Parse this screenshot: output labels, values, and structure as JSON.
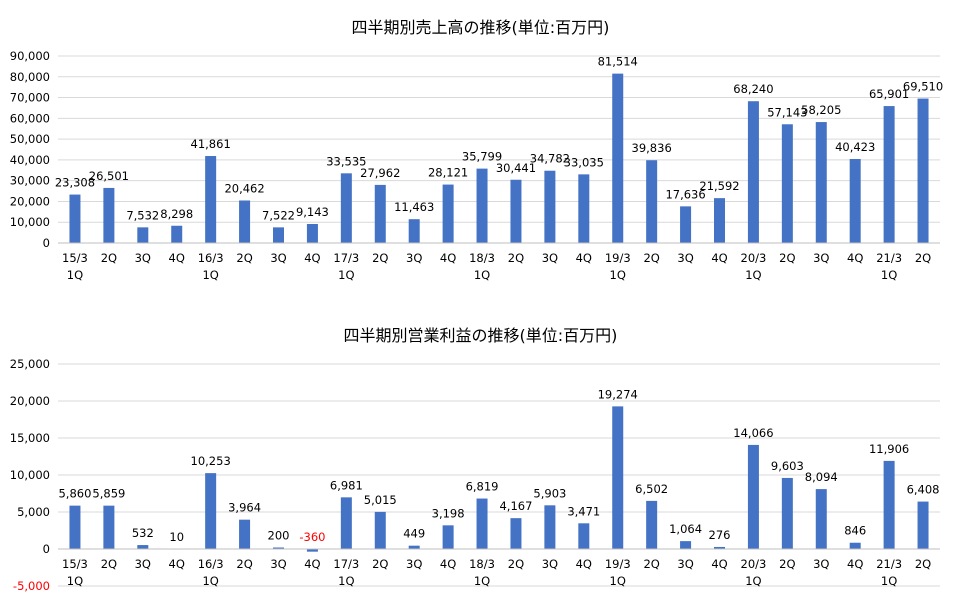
{
  "chart_data": [
    {
      "type": "bar",
      "title": "四半期別売上高の推移(単位:百万円)",
      "categories": [
        "15/3 1Q",
        "2Q",
        "3Q",
        "4Q",
        "16/3 1Q",
        "2Q",
        "3Q",
        "4Q",
        "17/3 1Q",
        "2Q",
        "3Q",
        "4Q",
        "18/3 1Q",
        "2Q",
        "3Q",
        "4Q",
        "19/3 1Q",
        "2Q",
        "3Q",
        "4Q",
        "20/3 1Q",
        "2Q",
        "3Q",
        "4Q",
        "21/3 1Q",
        "2Q"
      ],
      "category_lines": [
        [
          "15/3",
          "1Q"
        ],
        [
          "2Q"
        ],
        [
          "3Q"
        ],
        [
          "4Q"
        ],
        [
          "16/3",
          "1Q"
        ],
        [
          "2Q"
        ],
        [
          "3Q"
        ],
        [
          "4Q"
        ],
        [
          "17/3",
          "1Q"
        ],
        [
          "2Q"
        ],
        [
          "3Q"
        ],
        [
          "4Q"
        ],
        [
          "18/3",
          "1Q"
        ],
        [
          "2Q"
        ],
        [
          "3Q"
        ],
        [
          "4Q"
        ],
        [
          "19/3",
          "1Q"
        ],
        [
          "2Q"
        ],
        [
          "3Q"
        ],
        [
          "4Q"
        ],
        [
          "20/3",
          "1Q"
        ],
        [
          "2Q"
        ],
        [
          "3Q"
        ],
        [
          "4Q"
        ],
        [
          "21/3",
          "1Q"
        ],
        [
          "2Q"
        ]
      ],
      "values": [
        23308,
        26501,
        7532,
        8298,
        41861,
        20462,
        7522,
        9143,
        33535,
        27962,
        11463,
        28121,
        35799,
        30441,
        34782,
        33035,
        81514,
        39836,
        17636,
        21592,
        68240,
        57143,
        58205,
        40423,
        65901,
        69510
      ],
      "labels": [
        "23,308",
        "26,501",
        "7,532",
        "8,298",
        "41,861",
        "20,462",
        "7,522",
        "9,143",
        "33,535",
        "27,962",
        "11,463",
        "28,121",
        "35,799",
        "30,441",
        "34,782",
        "33,035",
        "81,514",
        "39,836",
        "17,636",
        "21,592",
        "68,240",
        "57,143",
        "58,205",
        "40,423",
        "65,901",
        "69,510"
      ],
      "ylim": [
        0,
        90000
      ],
      "yticks": [
        0,
        10000,
        20000,
        30000,
        40000,
        50000,
        60000,
        70000,
        80000,
        90000
      ],
      "ytick_labels": [
        "0",
        "10,000",
        "20,000",
        "30,000",
        "40,000",
        "50,000",
        "60,000",
        "70,000",
        "80,000",
        "90,000"
      ],
      "xlabel": "",
      "ylabel": "",
      "grid": true,
      "legend": "none"
    },
    {
      "type": "bar",
      "title": "四半期別営業利益の推移(単位:百万円)",
      "categories": [
        "15/3 1Q",
        "2Q",
        "3Q",
        "4Q",
        "16/3 1Q",
        "2Q",
        "3Q",
        "4Q",
        "17/3 1Q",
        "2Q",
        "3Q",
        "4Q",
        "18/3 1Q",
        "2Q",
        "3Q",
        "4Q",
        "19/3 1Q",
        "2Q",
        "3Q",
        "4Q",
        "20/3 1Q",
        "2Q",
        "3Q",
        "4Q",
        "21/3 1Q",
        "2Q"
      ],
      "category_lines": [
        [
          "15/3",
          "1Q"
        ],
        [
          "2Q"
        ],
        [
          "3Q"
        ],
        [
          "4Q"
        ],
        [
          "16/3",
          "1Q"
        ],
        [
          "2Q"
        ],
        [
          "3Q"
        ],
        [
          "4Q"
        ],
        [
          "17/3",
          "1Q"
        ],
        [
          "2Q"
        ],
        [
          "3Q"
        ],
        [
          "4Q"
        ],
        [
          "18/3",
          "1Q"
        ],
        [
          "2Q"
        ],
        [
          "3Q"
        ],
        [
          "4Q"
        ],
        [
          "19/3",
          "1Q"
        ],
        [
          "2Q"
        ],
        [
          "3Q"
        ],
        [
          "4Q"
        ],
        [
          "20/3",
          "1Q"
        ],
        [
          "2Q"
        ],
        [
          "3Q"
        ],
        [
          "4Q"
        ],
        [
          "21/3",
          "1Q"
        ],
        [
          "2Q"
        ]
      ],
      "values": [
        5860,
        5859,
        532,
        10,
        10253,
        3964,
        200,
        -360,
        6981,
        5015,
        449,
        3198,
        6819,
        4167,
        5903,
        3471,
        19274,
        6502,
        1064,
        276,
        14066,
        9603,
        8094,
        846,
        11906,
        6408
      ],
      "labels": [
        "5,860",
        "5,859",
        "532",
        "10",
        "10,253",
        "3,964",
        "200",
        "-360",
        "6,981",
        "5,015",
        "449",
        "3,198",
        "6,819",
        "4,167",
        "5,903",
        "3,471",
        "19,274",
        "6,502",
        "1,064",
        "276",
        "14,066",
        "9,603",
        "8,094",
        "846",
        "11,906",
        "6,408"
      ],
      "ylim": [
        -5000,
        25000
      ],
      "yticks": [
        -5000,
        0,
        5000,
        10000,
        15000,
        20000,
        25000
      ],
      "ytick_labels": [
        "-5,000",
        "0",
        "5,000",
        "10,000",
        "15,000",
        "20,000",
        "25,000"
      ],
      "xlabel": "",
      "ylabel": "",
      "grid": true,
      "legend": "none"
    }
  ],
  "colors": {
    "bar": "#4472C4",
    "grid": "#D9D9D9",
    "negative": "#FF0000",
    "text": "#000000"
  }
}
